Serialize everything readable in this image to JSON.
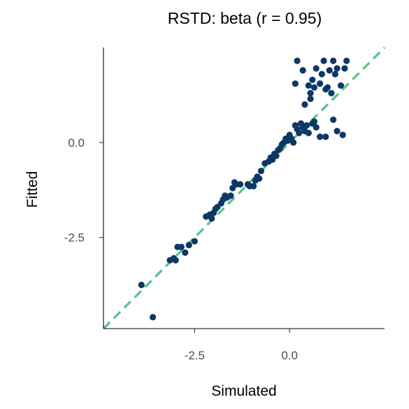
{
  "chart_data": {
    "type": "scatter",
    "title": "RSTD: beta (r = 0.95)",
    "xlabel": "Simulated",
    "ylabel": "Fitted",
    "xlim": [
      -4.9,
      2.5
    ],
    "ylim": [
      -4.9,
      2.5
    ],
    "xticks": [
      -2.5,
      0.0
    ],
    "xtick_labels": [
      "-2.5",
      "0.0"
    ],
    "yticks": [
      0.0,
      -2.5
    ],
    "ytick_labels": [
      "0.0",
      "-2.5"
    ],
    "grid": false,
    "legend": "none",
    "reference_line": {
      "type": "identity",
      "style": "dashed",
      "color": "#5bbf8a"
    },
    "point_color": "#0c3866",
    "points": [
      {
        "x": -3.9,
        "y": -3.75
      },
      {
        "x": -3.6,
        "y": -4.6
      },
      {
        "x": -3.15,
        "y": -3.1
      },
      {
        "x": -3.05,
        "y": -3.05
      },
      {
        "x": -3.0,
        "y": -3.1
      },
      {
        "x": -2.95,
        "y": -2.75
      },
      {
        "x": -2.85,
        "y": -2.75
      },
      {
        "x": -2.75,
        "y": -2.9
      },
      {
        "x": -2.65,
        "y": -2.7
      },
      {
        "x": -2.5,
        "y": -2.6
      },
      {
        "x": -2.2,
        "y": -1.95
      },
      {
        "x": -2.1,
        "y": -1.9
      },
      {
        "x": -2.05,
        "y": -2.0
      },
      {
        "x": -2.0,
        "y": -1.85
      },
      {
        "x": -1.95,
        "y": -1.75
      },
      {
        "x": -1.9,
        "y": -1.7
      },
      {
        "x": -1.8,
        "y": -1.6
      },
      {
        "x": -1.75,
        "y": -1.5
      },
      {
        "x": -1.7,
        "y": -1.4
      },
      {
        "x": -1.65,
        "y": -1.45
      },
      {
        "x": -1.55,
        "y": -1.4
      },
      {
        "x": -1.5,
        "y": -1.2
      },
      {
        "x": -1.45,
        "y": -1.05
      },
      {
        "x": -1.4,
        "y": -1.1
      },
      {
        "x": -1.3,
        "y": -1.1
      },
      {
        "x": -1.1,
        "y": -1.1
      },
      {
        "x": -1.05,
        "y": -1.15
      },
      {
        "x": -0.95,
        "y": -1.15
      },
      {
        "x": -0.9,
        "y": -1.0
      },
      {
        "x": -0.85,
        "y": -0.9
      },
      {
        "x": -0.8,
        "y": -0.95
      },
      {
        "x": -0.75,
        "y": -0.75
      },
      {
        "x": -0.65,
        "y": -0.55
      },
      {
        "x": -0.55,
        "y": -0.5
      },
      {
        "x": -0.5,
        "y": -0.4
      },
      {
        "x": -0.45,
        "y": -0.45
      },
      {
        "x": -0.4,
        "y": -0.3
      },
      {
        "x": -0.35,
        "y": -0.35
      },
      {
        "x": -0.3,
        "y": -0.2
      },
      {
        "x": -0.25,
        "y": -0.15
      },
      {
        "x": -0.2,
        "y": -0.05
      },
      {
        "x": -0.15,
        "y": 0.0
      },
      {
        "x": -0.1,
        "y": 0.1
      },
      {
        "x": -0.05,
        "y": 0.05
      },
      {
        "x": 0.0,
        "y": 0.2
      },
      {
        "x": 0.05,
        "y": 0.1
      },
      {
        "x": 0.1,
        "y": 0.0
      },
      {
        "x": 0.15,
        "y": 0.45
      },
      {
        "x": 0.2,
        "y": 0.35
      },
      {
        "x": 0.25,
        "y": 0.25
      },
      {
        "x": 0.3,
        "y": 0.5
      },
      {
        "x": 0.35,
        "y": 0.4
      },
      {
        "x": 0.4,
        "y": 0.3
      },
      {
        "x": 0.45,
        "y": 0.45
      },
      {
        "x": 0.5,
        "y": 0.25
      },
      {
        "x": 0.6,
        "y": 0.5
      },
      {
        "x": 0.65,
        "y": 0.55
      },
      {
        "x": 0.7,
        "y": 0.4
      },
      {
        "x": 0.8,
        "y": 0.15
      },
      {
        "x": 0.95,
        "y": 0.15
      },
      {
        "x": 1.15,
        "y": 0.6
      },
      {
        "x": 1.25,
        "y": 0.3
      },
      {
        "x": 1.4,
        "y": 0.2
      },
      {
        "x": 0.2,
        "y": 2.15
      },
      {
        "x": 0.35,
        "y": 1.9
      },
      {
        "x": 0.15,
        "y": 1.55
      },
      {
        "x": 0.5,
        "y": 1.5
      },
      {
        "x": 0.55,
        "y": 1.3
      },
      {
        "x": 0.6,
        "y": 1.65
      },
      {
        "x": 0.65,
        "y": 1.45
      },
      {
        "x": 0.7,
        "y": 1.95
      },
      {
        "x": 0.8,
        "y": 1.55
      },
      {
        "x": 0.85,
        "y": 1.8
      },
      {
        "x": 0.9,
        "y": 2.15
      },
      {
        "x": 0.95,
        "y": 1.4
      },
      {
        "x": 1.0,
        "y": 1.45
      },
      {
        "x": 1.05,
        "y": 1.9
      },
      {
        "x": 1.1,
        "y": 1.3
      },
      {
        "x": 1.15,
        "y": 2.15
      },
      {
        "x": 1.2,
        "y": 1.8
      },
      {
        "x": 1.25,
        "y": 1.95
      },
      {
        "x": 1.35,
        "y": 1.5
      },
      {
        "x": 1.45,
        "y": 1.95
      },
      {
        "x": 1.5,
        "y": 2.15
      },
      {
        "x": 0.4,
        "y": 1.0
      },
      {
        "x": 0.55,
        "y": 1.15
      }
    ]
  }
}
